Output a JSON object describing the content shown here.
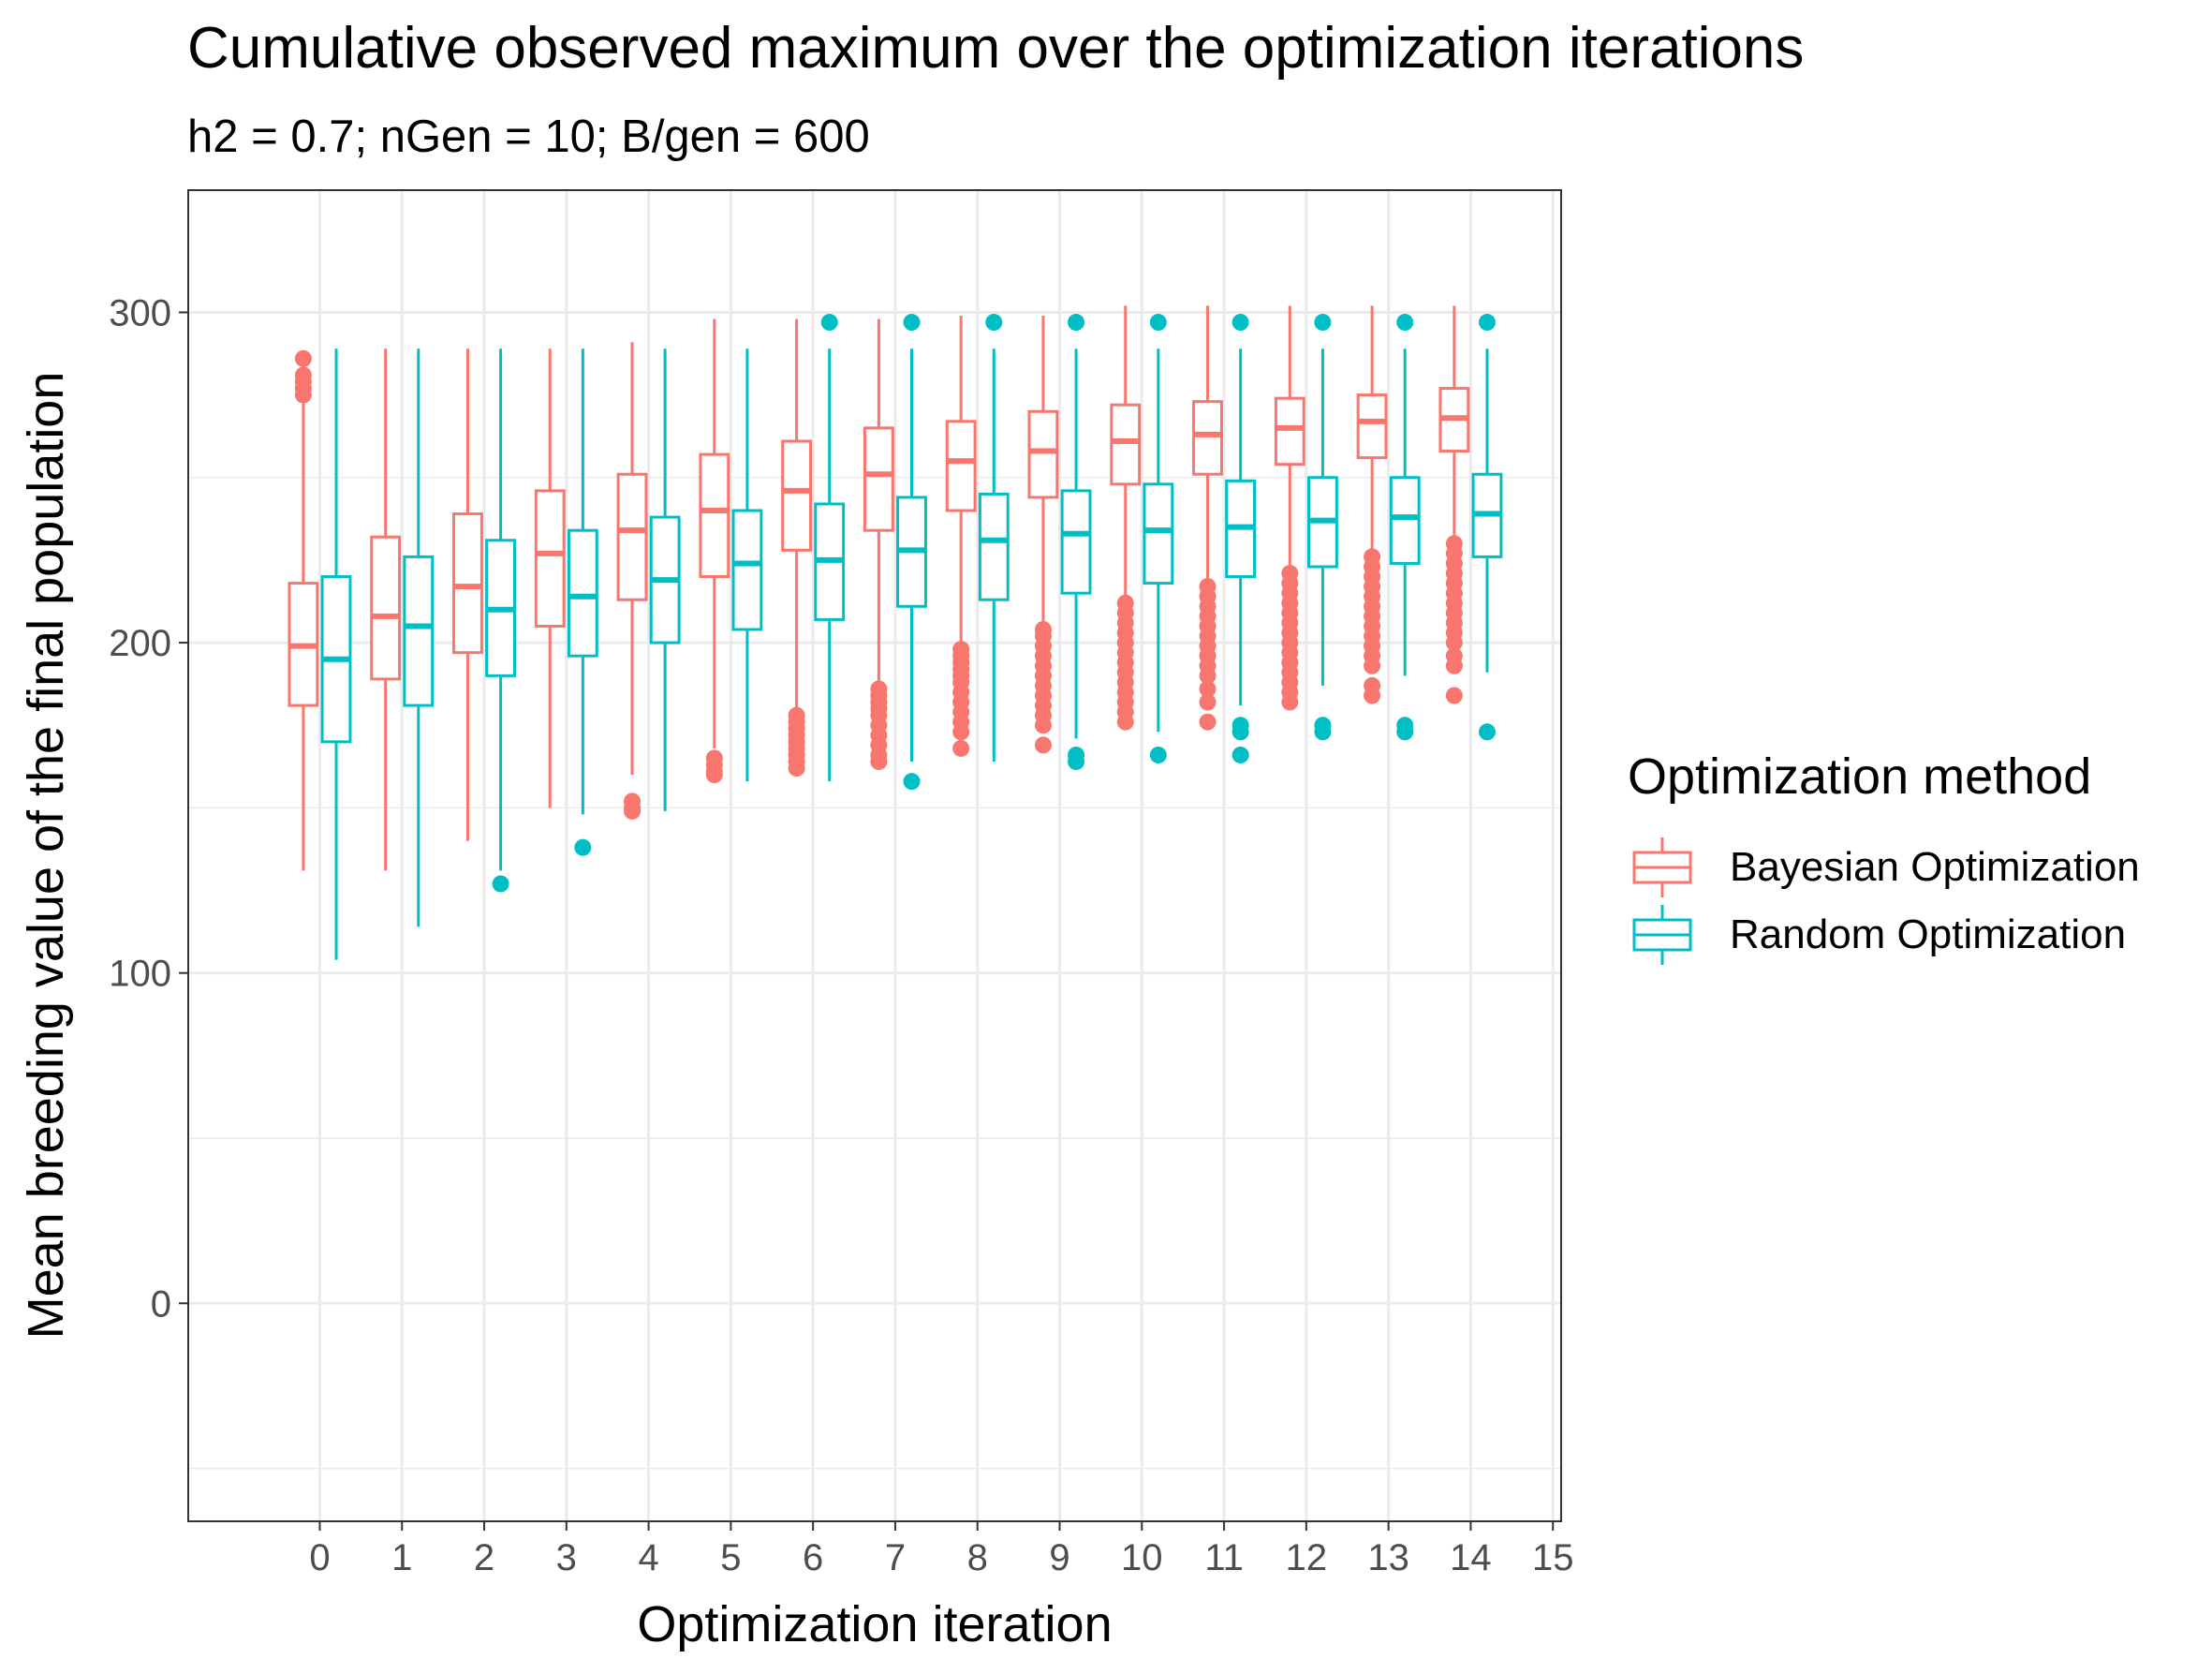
{
  "chart_data": {
    "type": "box",
    "title": "Cumulative observed maximum over the optimization iterations",
    "subtitle": "h2 = 0.7; nGen = 10; B/gen = 600",
    "xlabel": "Optimization iteration",
    "ylabel": "Mean breeding value of the final population",
    "xlim": [
      -1.6,
      15.1
    ],
    "ylim": [
      -66,
      337
    ],
    "x_ticks": [
      0,
      1,
      2,
      3,
      4,
      5,
      6,
      7,
      8,
      9,
      10,
      11,
      12,
      13,
      14,
      15
    ],
    "y_ticks": [
      0,
      100,
      200,
      300
    ],
    "grid": true,
    "legend": {
      "title": "Optimization method",
      "position": "right"
    },
    "colors": {
      "Bayesian Optimization": "#F8766D",
      "Random Optimization": "#00BFC4",
      "grid": "#EBEBEB",
      "axis_text": "#4D4D4D"
    },
    "series": [
      {
        "name": "Bayesian Optimization",
        "offset": -0.2,
        "boxes": [
          {
            "x": 0,
            "whisker_low": 131,
            "q1": 181,
            "median": 199,
            "q3": 218,
            "whisker_high": 288,
            "outliers": [
              275,
              277,
              279,
              281,
              286
            ]
          },
          {
            "x": 1,
            "whisker_low": 131,
            "q1": 189,
            "median": 208,
            "q3": 232,
            "whisker_high": 289,
            "outliers": []
          },
          {
            "x": 2,
            "whisker_low": 140,
            "q1": 197,
            "median": 217,
            "q3": 239,
            "whisker_high": 289,
            "outliers": []
          },
          {
            "x": 3,
            "whisker_low": 150,
            "q1": 205,
            "median": 227,
            "q3": 246,
            "whisker_high": 289,
            "outliers": []
          },
          {
            "x": 4,
            "whisker_low": 160,
            "q1": 213,
            "median": 234,
            "q3": 251,
            "whisker_high": 291,
            "outliers": [
              149,
              150,
              152
            ]
          },
          {
            "x": 5,
            "whisker_low": 168,
            "q1": 220,
            "median": 240,
            "q3": 257,
            "whisker_high": 298,
            "outliers": [
              160,
              161,
              163,
              165
            ]
          },
          {
            "x": 6,
            "whisker_low": 178,
            "q1": 228,
            "median": 246,
            "q3": 261,
            "whisker_high": 298,
            "outliers": [
              162,
              164,
              166,
              168,
              170,
              172,
              174,
              176,
              178
            ]
          },
          {
            "x": 7,
            "whisker_low": 185,
            "q1": 234,
            "median": 251,
            "q3": 265,
            "whisker_high": 298,
            "outliers": [
              164,
              166,
              169,
              172,
              175,
              178,
              180,
              182,
              184,
              186
            ]
          },
          {
            "x": 8,
            "whisker_low": 196,
            "q1": 240,
            "median": 255,
            "q3": 267,
            "whisker_high": 299,
            "outliers": [
              168,
              173,
              176,
              179,
              182,
              185,
              188,
              190,
              192,
              194,
              196,
              198
            ]
          },
          {
            "x": 9,
            "whisker_low": 202,
            "q1": 244,
            "median": 258,
            "q3": 270,
            "whisker_high": 299,
            "outliers": [
              169,
              175,
              178,
              181,
              184,
              187,
              190,
              193,
              196,
              199,
              202,
              204
            ]
          },
          {
            "x": 10,
            "whisker_low": 210,
            "q1": 248,
            "median": 261,
            "q3": 272,
            "whisker_high": 302,
            "outliers": [
              176,
              179,
              182,
              185,
              188,
              191,
              194,
              197,
              200,
              203,
              206,
              209,
              212
            ]
          },
          {
            "x": 11,
            "whisker_low": 218,
            "q1": 251,
            "median": 263,
            "q3": 273,
            "whisker_high": 302,
            "outliers": [
              176,
              182,
              186,
              190,
              193,
              196,
              199,
              202,
              205,
              208,
              211,
              214,
              217
            ]
          },
          {
            "x": 12,
            "whisker_low": 222,
            "q1": 254,
            "median": 265,
            "q3": 274,
            "whisker_high": 302,
            "outliers": [
              182,
              185,
              188,
              191,
              194,
              197,
              200,
              203,
              206,
              209,
              212,
              215,
              218,
              221
            ]
          },
          {
            "x": 13,
            "whisker_low": 227,
            "q1": 256,
            "median": 267,
            "q3": 275,
            "whisker_high": 302,
            "outliers": [
              184,
              187,
              193,
              196,
              199,
              202,
              205,
              208,
              211,
              214,
              217,
              220,
              223,
              226
            ]
          },
          {
            "x": 14,
            "whisker_low": 230,
            "q1": 258,
            "median": 268,
            "q3": 277,
            "whisker_high": 302,
            "outliers": [
              184,
              193,
              196,
              200,
              203,
              206,
              209,
              212,
              215,
              218,
              221,
              224,
              227,
              230
            ]
          }
        ]
      },
      {
        "name": "Random Optimization",
        "offset": 0.2,
        "boxes": [
          {
            "x": 0,
            "whisker_low": 104,
            "q1": 170,
            "median": 195,
            "q3": 220,
            "whisker_high": 289,
            "outliers": []
          },
          {
            "x": 1,
            "whisker_low": 114,
            "q1": 181,
            "median": 205,
            "q3": 226,
            "whisker_high": 289,
            "outliers": []
          },
          {
            "x": 2,
            "whisker_low": 131,
            "q1": 190,
            "median": 210,
            "q3": 231,
            "whisker_high": 289,
            "outliers": [
              127
            ]
          },
          {
            "x": 3,
            "whisker_low": 148,
            "q1": 196,
            "median": 214,
            "q3": 234,
            "whisker_high": 289,
            "outliers": [
              138
            ]
          },
          {
            "x": 4,
            "whisker_low": 149,
            "q1": 200,
            "median": 219,
            "q3": 238,
            "whisker_high": 289,
            "outliers": []
          },
          {
            "x": 5,
            "whisker_low": 158,
            "q1": 204,
            "median": 224,
            "q3": 240,
            "whisker_high": 289,
            "outliers": []
          },
          {
            "x": 6,
            "whisker_low": 158,
            "q1": 207,
            "median": 225,
            "q3": 242,
            "whisker_high": 289,
            "outliers": [
              297
            ]
          },
          {
            "x": 7,
            "whisker_low": 164,
            "q1": 211,
            "median": 228,
            "q3": 244,
            "whisker_high": 289,
            "outliers": [
              158,
              297
            ]
          },
          {
            "x": 8,
            "whisker_low": 164,
            "q1": 213,
            "median": 231,
            "q3": 245,
            "whisker_high": 289,
            "outliers": [
              297
            ]
          },
          {
            "x": 9,
            "whisker_low": 171,
            "q1": 215,
            "median": 233,
            "q3": 246,
            "whisker_high": 289,
            "outliers": [
              164,
              166,
              297
            ]
          },
          {
            "x": 10,
            "whisker_low": 173,
            "q1": 218,
            "median": 234,
            "q3": 248,
            "whisker_high": 289,
            "outliers": [
              166,
              297
            ]
          },
          {
            "x": 11,
            "whisker_low": 181,
            "q1": 220,
            "median": 235,
            "q3": 249,
            "whisker_high": 289,
            "outliers": [
              166,
              173,
              175,
              297
            ]
          },
          {
            "x": 12,
            "whisker_low": 187,
            "q1": 223,
            "median": 237,
            "q3": 250,
            "whisker_high": 289,
            "outliers": [
              173,
              175,
              297
            ]
          },
          {
            "x": 13,
            "whisker_low": 190,
            "q1": 224,
            "median": 238,
            "q3": 250,
            "whisker_high": 289,
            "outliers": [
              173,
              175,
              297
            ]
          },
          {
            "x": 14,
            "whisker_low": 191,
            "q1": 226,
            "median": 239,
            "q3": 251,
            "whisker_high": 289,
            "outliers": [
              173,
              297
            ]
          }
        ]
      }
    ]
  }
}
